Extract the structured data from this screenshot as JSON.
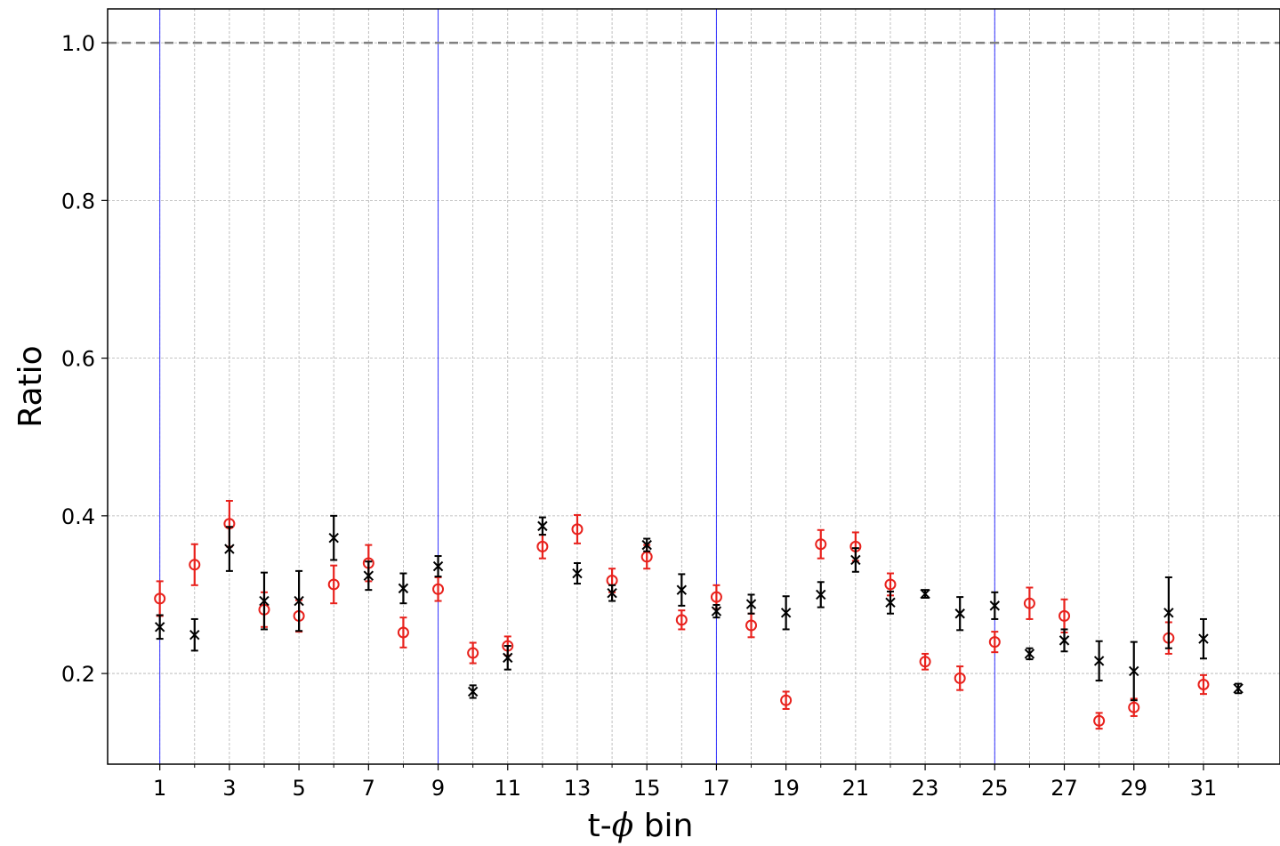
{
  "chart_data": {
    "type": "scatter",
    "title": "",
    "xlabel_prefix": "t-",
    "xlabel_symbol": "ϕ",
    "xlabel_suffix": " bin",
    "ylabel": "Ratio",
    "xlim": [
      -0.5,
      33.2
    ],
    "ylim": [
      0.085,
      1.043
    ],
    "xticks": [
      1,
      3,
      5,
      7,
      9,
      11,
      13,
      15,
      17,
      19,
      21,
      23,
      25,
      27,
      29,
      31
    ],
    "xtick_labels": [
      "1",
      "3",
      "5",
      "7",
      "9",
      "11",
      "13",
      "15",
      "17",
      "19",
      "21",
      "23",
      "25",
      "27",
      "29",
      "31"
    ],
    "yticks": [
      0.2,
      0.4,
      0.6,
      0.8,
      1.0
    ],
    "ytick_labels": [
      "0.2",
      "0.4",
      "0.6",
      "0.8",
      "1.0"
    ],
    "grid": true,
    "reference_line": {
      "y": 1.0,
      "style": "dashed",
      "color": "#808080"
    },
    "vertical_lines": {
      "x": [
        1,
        9,
        17,
        25
      ],
      "color": "#3333ff"
    },
    "series": [
      {
        "marker": "x",
        "color": "#000000",
        "x": [
          1,
          2,
          3,
          4,
          5,
          6,
          7,
          8,
          9,
          10,
          11,
          12,
          13,
          14,
          15,
          16,
          17,
          18,
          19,
          20,
          21,
          22,
          23,
          24,
          25,
          26,
          27,
          28,
          29,
          30,
          31,
          32
        ],
        "y": [
          0.259,
          0.249,
          0.358,
          0.292,
          0.292,
          0.372,
          0.324,
          0.308,
          0.336,
          0.177,
          0.22,
          0.387,
          0.327,
          0.302,
          0.363,
          0.306,
          0.279,
          0.288,
          0.277,
          0.3,
          0.344,
          0.29,
          0.301,
          0.276,
          0.286,
          0.225,
          0.242,
          0.216,
          0.203,
          0.277,
          0.244,
          0.181
        ],
        "err": [
          0.015,
          0.02,
          0.028,
          0.036,
          0.038,
          0.028,
          0.018,
          0.019,
          0.013,
          0.008,
          0.015,
          0.011,
          0.013,
          0.01,
          0.008,
          0.02,
          0.008,
          0.012,
          0.021,
          0.016,
          0.015,
          0.014,
          0.005,
          0.021,
          0.017,
          0.007,
          0.014,
          0.025,
          0.037,
          0.045,
          0.025,
          0.006
        ]
      },
      {
        "marker": "o",
        "color": "#e8211c",
        "x": [
          1,
          2,
          3,
          4,
          5,
          6,
          7,
          8,
          9,
          10,
          11,
          12,
          13,
          14,
          15,
          16,
          17,
          18,
          19,
          20,
          21,
          22,
          23,
          24,
          25,
          26,
          27,
          28,
          29,
          30,
          31
        ],
        "y": [
          0.295,
          0.338,
          0.39,
          0.281,
          0.273,
          0.313,
          0.34,
          0.252,
          0.307,
          0.226,
          0.235,
          0.361,
          0.383,
          0.318,
          0.348,
          0.268,
          0.297,
          0.261,
          0.166,
          0.364,
          0.361,
          0.313,
          0.215,
          0.194,
          0.24,
          0.289,
          0.273,
          0.14,
          0.157,
          0.245,
          0.186
        ]
      }
    ],
    "err_o": [
      0.022,
      0.026,
      0.029,
      0.022,
      0.02,
      0.024,
      0.023,
      0.019,
      0.015,
      0.013,
      0.012,
      0.015,
      0.018,
      0.015,
      0.015,
      0.012,
      0.015,
      0.015,
      0.011,
      0.018,
      0.018,
      0.014,
      0.01,
      0.015,
      0.013,
      0.02,
      0.021,
      0.01,
      0.011,
      0.02,
      0.012
    ]
  }
}
